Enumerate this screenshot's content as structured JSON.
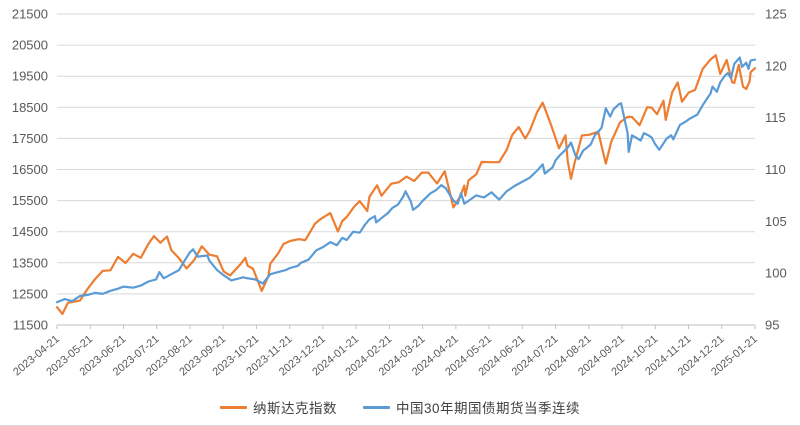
{
  "colors": {
    "background": "#FFFFFF",
    "gridline": "#D9D9D9",
    "axis_line": "#BFBFBF",
    "tick_text": "#595959",
    "legend_text": "#404040",
    "nasdaq_orange": "#ED7D31",
    "bond_blue": "#5B9BD5"
  },
  "legend": {
    "items": [
      {
        "label": "纳斯达克指数",
        "color": "#ED7D31"
      },
      {
        "label": "中国30年期国债期货当季连续",
        "color": "#5B9BD5"
      }
    ]
  },
  "chart_data": {
    "type": "line",
    "title": "",
    "grid": "horizontal",
    "legend_position": "bottom",
    "x_axis": {
      "start": "2023-04-21",
      "end": "2025-01-21",
      "label_rotation_deg": -40,
      "tick_labels": [
        "2023-04-21",
        "2023-05-21",
        "2023-06-21",
        "2023-07-21",
        "2023-08-21",
        "2023-09-21",
        "2023-10-21",
        "2023-11-21",
        "2023-12-21",
        "2024-01-21",
        "2024-02-21",
        "2024-03-21",
        "2024-04-21",
        "2024-05-21",
        "2024-06-21",
        "2024-07-21",
        "2024-08-21",
        "2024-09-21",
        "2024-10-21",
        "2024-11-21",
        "2024-12-21",
        "2025-01-21"
      ]
    },
    "left_axis": {
      "min": 11500,
      "max": 21500,
      "step": 1000,
      "tick_labels": [
        "21500",
        "20500",
        "19500",
        "18500",
        "17500",
        "16500",
        "15500",
        "14500",
        "13500",
        "12500",
        "11500"
      ]
    },
    "right_axis": {
      "min": 95,
      "max": 125,
      "step": 5,
      "tick_labels": [
        "125",
        "120",
        "115",
        "110",
        "105",
        "100",
        "95"
      ]
    },
    "series": [
      {
        "name": "纳斯达克指数",
        "color": "#ED7D31",
        "axis": "left",
        "points": [
          [
            "2023-04-21",
            12072
          ],
          [
            "2023-04-26",
            11854
          ],
          [
            "2023-05-01",
            12213
          ],
          [
            "2023-05-05",
            12236
          ],
          [
            "2023-05-12",
            12285
          ],
          [
            "2023-05-19",
            12658
          ],
          [
            "2023-05-26",
            12976
          ],
          [
            "2023-06-02",
            13241
          ],
          [
            "2023-06-09",
            13259
          ],
          [
            "2023-06-16",
            13690
          ],
          [
            "2023-06-23",
            13493
          ],
          [
            "2023-06-30",
            13788
          ],
          [
            "2023-07-07",
            13661
          ],
          [
            "2023-07-14",
            14114
          ],
          [
            "2023-07-19",
            14358
          ],
          [
            "2023-07-25",
            14145
          ],
          [
            "2023-07-31",
            14346
          ],
          [
            "2023-08-04",
            13909
          ],
          [
            "2023-08-11",
            13645
          ],
          [
            "2023-08-18",
            13317
          ],
          [
            "2023-08-25",
            13591
          ],
          [
            "2023-09-01",
            14032
          ],
          [
            "2023-09-08",
            13762
          ],
          [
            "2023-09-15",
            13708
          ],
          [
            "2023-09-21",
            13224
          ],
          [
            "2023-09-27",
            13092
          ],
          [
            "2023-10-06",
            13431
          ],
          [
            "2023-10-11",
            13660
          ],
          [
            "2023-10-13",
            13407
          ],
          [
            "2023-10-18",
            13314
          ],
          [
            "2023-10-26",
            12595
          ],
          [
            "2023-11-01",
            13061
          ],
          [
            "2023-11-03",
            13478
          ],
          [
            "2023-11-10",
            13798
          ],
          [
            "2023-11-15",
            14104
          ],
          [
            "2023-11-21",
            14200
          ],
          [
            "2023-11-29",
            14258
          ],
          [
            "2023-12-05",
            14230
          ],
          [
            "2023-12-08",
            14404
          ],
          [
            "2023-12-14",
            14762
          ],
          [
            "2023-12-19",
            14905
          ],
          [
            "2023-12-28",
            15099
          ],
          [
            "2024-01-04",
            14510
          ],
          [
            "2024-01-08",
            14843
          ],
          [
            "2024-01-12",
            14973
          ],
          [
            "2024-01-19",
            15311
          ],
          [
            "2024-01-24",
            15482
          ],
          [
            "2024-01-31",
            15164
          ],
          [
            "2024-02-02",
            15629
          ],
          [
            "2024-02-09",
            15991
          ],
          [
            "2024-02-13",
            15656
          ],
          [
            "2024-02-22",
            16042
          ],
          [
            "2024-02-29",
            16092
          ],
          [
            "2024-03-07",
            16273
          ],
          [
            "2024-03-14",
            16129
          ],
          [
            "2024-03-21",
            16401
          ],
          [
            "2024-03-27",
            16400
          ],
          [
            "2024-04-04",
            16049
          ],
          [
            "2024-04-11",
            16442
          ],
          [
            "2024-04-19",
            15282
          ],
          [
            "2024-04-25",
            15612
          ],
          [
            "2024-04-29",
            15983
          ],
          [
            "2024-04-30",
            15658
          ],
          [
            "2024-05-03",
            16156
          ],
          [
            "2024-05-10",
            16341
          ],
          [
            "2024-05-15",
            16743
          ],
          [
            "2024-05-23",
            16736
          ],
          [
            "2024-05-31",
            16735
          ],
          [
            "2024-06-07",
            17133
          ],
          [
            "2024-06-12",
            17608
          ],
          [
            "2024-06-18",
            17862
          ],
          [
            "2024-06-24",
            17496
          ],
          [
            "2024-06-28",
            17733
          ],
          [
            "2024-07-05",
            18353
          ],
          [
            "2024-07-10",
            18647
          ],
          [
            "2024-07-17",
            18003
          ],
          [
            "2024-07-25",
            17181
          ],
          [
            "2024-07-31",
            17599
          ],
          [
            "2024-08-02",
            16776
          ],
          [
            "2024-08-05",
            16200
          ],
          [
            "2024-08-08",
            16660
          ],
          [
            "2024-08-15",
            17594
          ],
          [
            "2024-08-22",
            17619
          ],
          [
            "2024-08-30",
            17714
          ],
          [
            "2024-09-06",
            16691
          ],
          [
            "2024-09-11",
            17396
          ],
          [
            "2024-09-19",
            18014
          ],
          [
            "2024-09-26",
            18190
          ],
          [
            "2024-09-30",
            18189
          ],
          [
            "2024-10-07",
            17924
          ],
          [
            "2024-10-14",
            18503
          ],
          [
            "2024-10-18",
            18490
          ],
          [
            "2024-10-23",
            18277
          ],
          [
            "2024-10-29",
            18713
          ],
          [
            "2024-10-31",
            18095
          ],
          [
            "2024-11-06",
            18983
          ],
          [
            "2024-11-11",
            19299
          ],
          [
            "2024-11-15",
            18680
          ],
          [
            "2024-11-21",
            18972
          ],
          [
            "2024-11-27",
            19060
          ],
          [
            "2024-12-04",
            19735
          ],
          [
            "2024-12-11",
            20034
          ],
          [
            "2024-12-16",
            20174
          ],
          [
            "2024-12-20",
            19573
          ],
          [
            "2024-12-26",
            20020
          ],
          [
            "2024-12-31",
            19311
          ],
          [
            "2025-01-02",
            19281
          ],
          [
            "2025-01-06",
            19864
          ],
          [
            "2025-01-10",
            19162
          ],
          [
            "2025-01-13",
            19088
          ],
          [
            "2025-01-16",
            19338
          ],
          [
            "2025-01-17",
            19630
          ],
          [
            "2025-01-21",
            19756
          ]
        ]
      },
      {
        "name": "中国30年期国债期货当季连续",
        "color": "#5B9BD5",
        "axis": "right",
        "points": [
          [
            "2023-04-21",
            97.2
          ],
          [
            "2023-04-28",
            97.5
          ],
          [
            "2023-05-05",
            97.3
          ],
          [
            "2023-05-12",
            97.8
          ],
          [
            "2023-05-19",
            97.9
          ],
          [
            "2023-05-26",
            98.1
          ],
          [
            "2023-06-02",
            98.0
          ],
          [
            "2023-06-09",
            98.3
          ],
          [
            "2023-06-16",
            98.5
          ],
          [
            "2023-06-21",
            98.7
          ],
          [
            "2023-06-30",
            98.6
          ],
          [
            "2023-07-07",
            98.8
          ],
          [
            "2023-07-14",
            99.2
          ],
          [
            "2023-07-21",
            99.4
          ],
          [
            "2023-07-24",
            100.1
          ],
          [
            "2023-07-28",
            99.5
          ],
          [
            "2023-08-04",
            99.9
          ],
          [
            "2023-08-11",
            100.3
          ],
          [
            "2023-08-15",
            101.0
          ],
          [
            "2023-08-21",
            102.0
          ],
          [
            "2023-08-24",
            102.3
          ],
          [
            "2023-08-28",
            101.6
          ],
          [
            "2023-09-06",
            101.7
          ],
          [
            "2023-09-08",
            101.2
          ],
          [
            "2023-09-15",
            100.3
          ],
          [
            "2023-09-21",
            99.8
          ],
          [
            "2023-09-28",
            99.3
          ],
          [
            "2023-10-09",
            99.6
          ],
          [
            "2023-10-13",
            99.5
          ],
          [
            "2023-10-20",
            99.4
          ],
          [
            "2023-10-27",
            99.0
          ],
          [
            "2023-11-03",
            99.9
          ],
          [
            "2023-11-10",
            100.1
          ],
          [
            "2023-11-17",
            100.3
          ],
          [
            "2023-11-21",
            100.5
          ],
          [
            "2023-11-28",
            100.7
          ],
          [
            "2023-12-01",
            101.0
          ],
          [
            "2023-12-08",
            101.3
          ],
          [
            "2023-12-15",
            102.2
          ],
          [
            "2023-12-21",
            102.5
          ],
          [
            "2023-12-28",
            103.0
          ],
          [
            "2024-01-03",
            102.7
          ],
          [
            "2024-01-08",
            103.4
          ],
          [
            "2024-01-12",
            103.2
          ],
          [
            "2024-01-18",
            104.0
          ],
          [
            "2024-01-24",
            103.9
          ],
          [
            "2024-01-29",
            104.7
          ],
          [
            "2024-02-02",
            105.2
          ],
          [
            "2024-02-07",
            105.5
          ],
          [
            "2024-02-08",
            104.9
          ],
          [
            "2024-02-19",
            105.8
          ],
          [
            "2024-02-23",
            106.3
          ],
          [
            "2024-02-28",
            106.6
          ],
          [
            "2024-03-04",
            107.4
          ],
          [
            "2024-03-06",
            107.9
          ],
          [
            "2024-03-11",
            106.9
          ],
          [
            "2024-03-13",
            106.1
          ],
          [
            "2024-03-18",
            106.5
          ],
          [
            "2024-03-22",
            107.0
          ],
          [
            "2024-03-29",
            107.7
          ],
          [
            "2024-04-03",
            108.0
          ],
          [
            "2024-04-08",
            108.5
          ],
          [
            "2024-04-12",
            108.2
          ],
          [
            "2024-04-19",
            107.0
          ],
          [
            "2024-04-23",
            106.7
          ],
          [
            "2024-04-26",
            107.7
          ],
          [
            "2024-04-29",
            106.7
          ],
          [
            "2024-05-06",
            107.2
          ],
          [
            "2024-05-10",
            107.5
          ],
          [
            "2024-05-17",
            107.3
          ],
          [
            "2024-05-24",
            107.8
          ],
          [
            "2024-05-31",
            107.1
          ],
          [
            "2024-06-07",
            107.9
          ],
          [
            "2024-06-14",
            108.4
          ],
          [
            "2024-06-21",
            108.8
          ],
          [
            "2024-06-28",
            109.2
          ],
          [
            "2024-07-05",
            109.9
          ],
          [
            "2024-07-10",
            110.5
          ],
          [
            "2024-07-12",
            109.6
          ],
          [
            "2024-07-19",
            110.2
          ],
          [
            "2024-07-22",
            110.9
          ],
          [
            "2024-07-26",
            111.4
          ],
          [
            "2024-08-02",
            112.1
          ],
          [
            "2024-08-05",
            112.6
          ],
          [
            "2024-08-09",
            111.4
          ],
          [
            "2024-08-12",
            111.0
          ],
          [
            "2024-08-16",
            111.8
          ],
          [
            "2024-08-23",
            112.4
          ],
          [
            "2024-08-27",
            113.3
          ],
          [
            "2024-09-02",
            114.0
          ],
          [
            "2024-09-06",
            115.9
          ],
          [
            "2024-09-10",
            115.1
          ],
          [
            "2024-09-13",
            115.8
          ],
          [
            "2024-09-18",
            116.3
          ],
          [
            "2024-09-20",
            116.4
          ],
          [
            "2024-09-26",
            113.5
          ],
          [
            "2024-09-27",
            111.7
          ],
          [
            "2024-09-30",
            113.3
          ],
          [
            "2024-10-08",
            112.8
          ],
          [
            "2024-10-11",
            113.5
          ],
          [
            "2024-10-15",
            113.3
          ],
          [
            "2024-10-18",
            113.1
          ],
          [
            "2024-10-21",
            112.5
          ],
          [
            "2024-10-25",
            111.9
          ],
          [
            "2024-11-01",
            113.0
          ],
          [
            "2024-11-05",
            113.3
          ],
          [
            "2024-11-07",
            112.9
          ],
          [
            "2024-11-13",
            114.3
          ],
          [
            "2024-11-18",
            114.6
          ],
          [
            "2024-11-22",
            114.9
          ],
          [
            "2024-11-29",
            115.3
          ],
          [
            "2024-12-04",
            116.2
          ],
          [
            "2024-12-09",
            117.0
          ],
          [
            "2024-12-11",
            117.3
          ],
          [
            "2024-12-13",
            118.0
          ],
          [
            "2024-12-17",
            117.5
          ],
          [
            "2024-12-20",
            118.4
          ],
          [
            "2024-12-24",
            119.0
          ],
          [
            "2024-12-27",
            119.3
          ],
          [
            "2024-12-30",
            118.8
          ],
          [
            "2025-01-02",
            120.2
          ],
          [
            "2025-01-07",
            120.8
          ],
          [
            "2025-01-09",
            119.9
          ],
          [
            "2025-01-13",
            120.3
          ],
          [
            "2025-01-15",
            119.7
          ],
          [
            "2025-01-17",
            120.5
          ],
          [
            "2025-01-21",
            120.6
          ]
        ]
      }
    ]
  }
}
